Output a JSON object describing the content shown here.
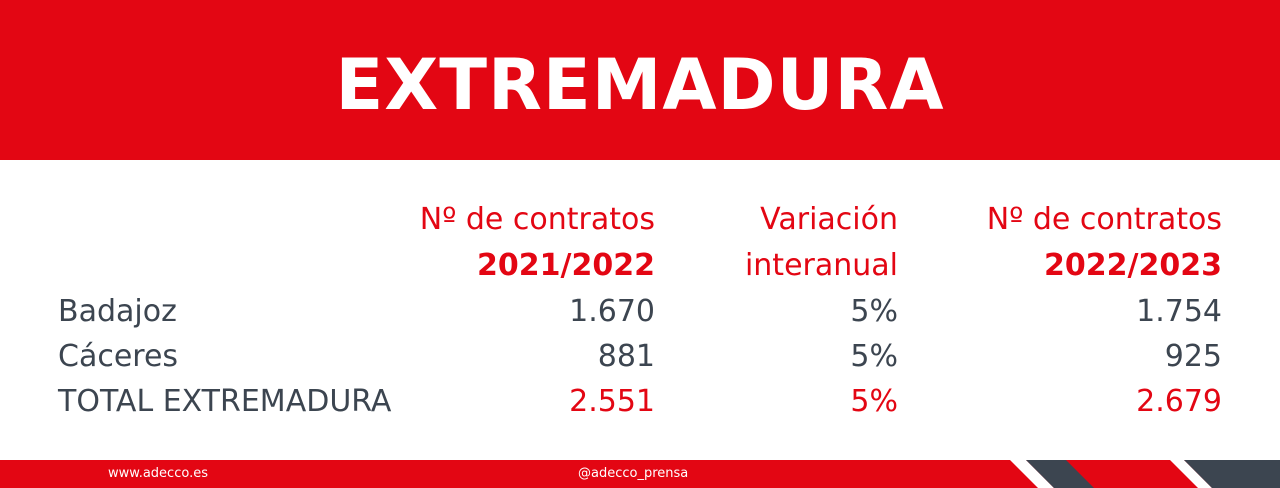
{
  "header": {
    "title": "EXTREMADURA"
  },
  "table": {
    "columns": [
      {
        "line1": "Nº de contratos",
        "line2": "2021/2022"
      },
      {
        "line1": "Variación",
        "line2": "interanual"
      },
      {
        "line1": "Nº de contratos",
        "line2": "2022/2023"
      }
    ],
    "rows": [
      {
        "label": "Badajoz",
        "cells": [
          "1.670",
          "5%",
          "1.754"
        ]
      },
      {
        "label": "Cáceres",
        "cells": [
          "881",
          "5%",
          "925"
        ]
      },
      {
        "label": "TOTAL EXTREMADURA",
        "cells": [
          "2.551",
          "5%",
          "2.679"
        ]
      }
    ]
  },
  "footer": {
    "website": "www.adecco.es",
    "social": "@adecco_prensa"
  }
}
